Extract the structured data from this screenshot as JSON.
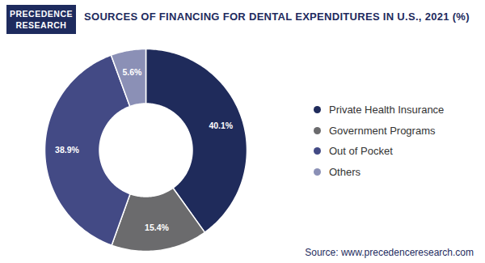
{
  "chart_data": {
    "type": "donut",
    "title": "SOURCES OF FINANCING FOR DENTAL EXPENDITURES IN U.S., 2021 (%)",
    "brand": [
      "PRECEDENCE",
      "RESEARCH"
    ],
    "source": "Source: www.precedenceresearch.com",
    "categories": [
      "Private Health Insurance",
      "Government Programs",
      "Out of Pocket",
      "Others"
    ],
    "values": [
      40.1,
      15.4,
      38.9,
      5.6
    ],
    "value_labels": [
      "40.1%",
      "15.4%",
      "38.9%",
      "5.6%"
    ],
    "colors": [
      "#1f2b5b",
      "#6b6b6d",
      "#434a85",
      "#8b90b6"
    ],
    "legend": "right",
    "data_labels": true
  }
}
